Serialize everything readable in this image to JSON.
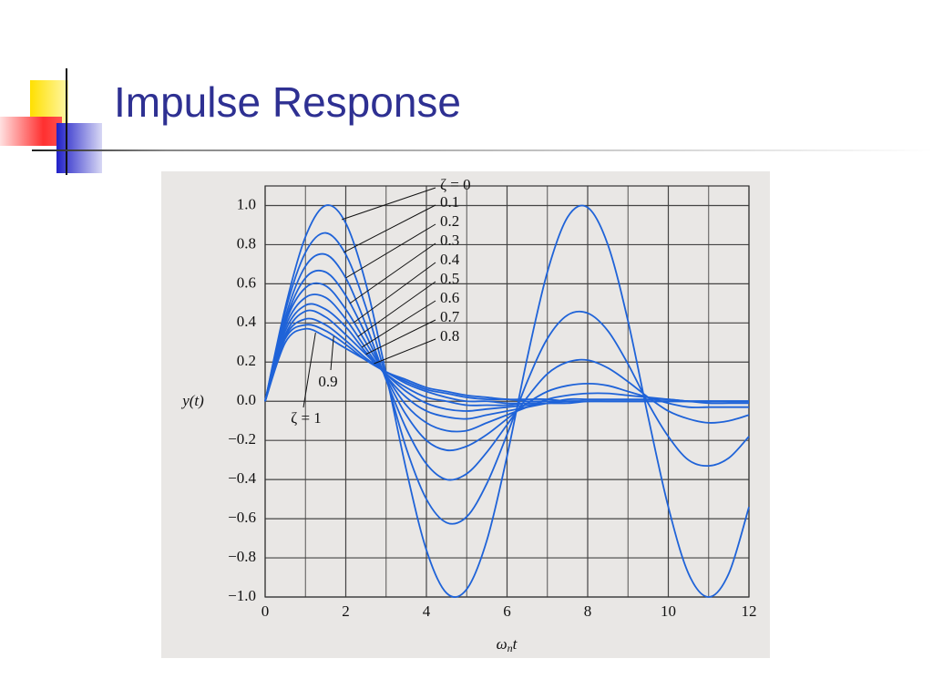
{
  "chart_data": {
    "type": "line",
    "title": "Impulse Response",
    "xlabel": {
      "base": "ω",
      "sub": "n",
      "tail": "t"
    },
    "ylabel": "y(t)",
    "x": [
      0,
      0.5,
      1,
      1.5,
      2,
      2.5,
      3,
      3.5,
      4,
      4.5,
      5,
      5.5,
      6,
      6.5,
      7,
      7.5,
      8,
      8.5,
      9,
      9.5,
      10,
      10.5,
      11,
      11.5,
      12
    ],
    "xlim": [
      0,
      12
    ],
    "xticks": [
      0,
      2,
      4,
      6,
      8,
      10,
      12
    ],
    "xminorticks": [
      1,
      3,
      5,
      7,
      9,
      11
    ],
    "ylim": [
      -1,
      1.1
    ],
    "yticks": [
      {
        "value": 1,
        "label": "1.0"
      },
      0.8,
      0.6,
      0.4,
      0.2,
      {
        "value": 0,
        "label": "0.0"
      },
      {
        "value": -0.2,
        "label": "−0.2"
      },
      {
        "value": -0.4,
        "label": "−0.4"
      },
      {
        "value": -0.6,
        "label": "−0.6"
      },
      {
        "value": -0.8,
        "label": "−0.8"
      },
      {
        "value": -1,
        "label": "−1.0"
      }
    ],
    "grid": true,
    "color": "#1f63d8",
    "series": [
      {
        "name": "ζ = 0",
        "values": [
          0,
          0.48,
          0.84,
          1.0,
          0.91,
          0.6,
          0.14,
          -0.35,
          -0.76,
          -0.98,
          -0.96,
          -0.71,
          -0.28,
          0.22,
          0.66,
          0.94,
          0.99,
          0.8,
          0.41,
          -0.08,
          -0.54,
          -0.88,
          -1.0,
          -0.88,
          -0.54
        ]
      },
      {
        "name": "0.1",
        "values": [
          0,
          0.46,
          0.76,
          0.86,
          0.75,
          0.48,
          0.12,
          -0.24,
          -0.5,
          -0.62,
          -0.59,
          -0.42,
          -0.17,
          0.1,
          0.32,
          0.44,
          0.45,
          0.36,
          0.19,
          -0.01,
          -0.18,
          -0.3,
          -0.33,
          -0.29,
          -0.18
        ]
      },
      {
        "name": "0.2",
        "values": [
          0,
          0.43,
          0.69,
          0.75,
          0.63,
          0.39,
          0.11,
          -0.14,
          -0.32,
          -0.4,
          -0.37,
          -0.26,
          -0.12,
          0.02,
          0.14,
          0.2,
          0.21,
          0.17,
          0.1,
          0.02,
          -0.05,
          -0.09,
          -0.11,
          -0.1,
          -0.07
        ]
      },
      {
        "name": "0.3",
        "values": [
          0,
          0.41,
          0.63,
          0.66,
          0.54,
          0.34,
          0.12,
          -0.07,
          -0.2,
          -0.25,
          -0.23,
          -0.17,
          -0.09,
          -0.01,
          0.05,
          0.08,
          0.09,
          0.08,
          0.05,
          0.02,
          -0.01,
          -0.03,
          -0.03,
          -0.03,
          -0.03
        ]
      },
      {
        "name": "0.4",
        "values": [
          0,
          0.4,
          0.58,
          0.59,
          0.47,
          0.3,
          0.13,
          -0.02,
          -0.11,
          -0.15,
          -0.15,
          -0.11,
          -0.07,
          -0.03,
          0.01,
          0.03,
          0.04,
          0.04,
          0.03,
          0.02,
          0.01,
          0,
          -0.01,
          -0.01,
          -0.01
        ]
      },
      {
        "name": "0.5",
        "values": [
          0,
          0.38,
          0.53,
          0.53,
          0.42,
          0.27,
          0.13,
          0.02,
          -0.05,
          -0.08,
          -0.09,
          -0.07,
          -0.05,
          -0.03,
          -0.01,
          0.01,
          0.01,
          0.01,
          0.01,
          0.01,
          0.01,
          0,
          0,
          0,
          0
        ]
      },
      {
        "name": "0.6",
        "values": [
          0,
          0.36,
          0.49,
          0.47,
          0.38,
          0.25,
          0.14,
          0.05,
          -0.01,
          -0.04,
          -0.05,
          -0.04,
          -0.03,
          -0.02,
          -0.01,
          0,
          0,
          0,
          0,
          0,
          0,
          0,
          0,
          0,
          0
        ]
      },
      {
        "name": "0.7",
        "values": [
          0,
          0.34,
          0.46,
          0.43,
          0.34,
          0.24,
          0.14,
          0.07,
          0.02,
          0,
          -0.02,
          -0.02,
          -0.02,
          -0.01,
          -0.01,
          -0.01,
          0,
          0,
          0,
          0,
          0,
          0,
          0,
          0,
          0
        ]
      },
      {
        "name": "0.8",
        "values": [
          0,
          0.33,
          0.42,
          0.39,
          0.31,
          0.22,
          0.15,
          0.09,
          0.05,
          0.02,
          0,
          0,
          -0.01,
          -0.01,
          -0.01,
          0,
          0,
          0,
          0,
          0,
          0,
          0,
          0,
          0,
          0
        ]
      },
      {
        "name": "0.9",
        "values": [
          0,
          0.32,
          0.39,
          0.36,
          0.29,
          0.21,
          0.15,
          0.1,
          0.06,
          0.04,
          0.02,
          0.01,
          0.01,
          0,
          0,
          0,
          0,
          0,
          0,
          0,
          0,
          0,
          0,
          0,
          0
        ]
      },
      {
        "name": "ζ = 1",
        "values": [
          0,
          0.3,
          0.37,
          0.33,
          0.27,
          0.21,
          0.15,
          0.11,
          0.07,
          0.05,
          0.03,
          0.02,
          0.01,
          0.01,
          0.01,
          0,
          0,
          0,
          0,
          0,
          0,
          0,
          0,
          0,
          0
        ]
      }
    ]
  }
}
